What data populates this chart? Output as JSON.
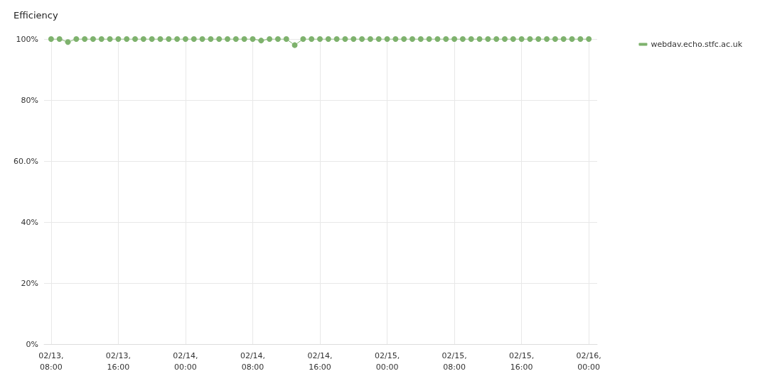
{
  "chart_data": {
    "type": "line",
    "title": "Efficiency",
    "x": [
      "--02-13T08:00",
      "--02-13T09:00",
      "--02-13T10:00",
      "--02-13T11:00",
      "--02-13T12:00",
      "--02-13T13:00",
      "--02-13T14:00",
      "--02-13T15:00",
      "--02-13T16:00",
      "--02-13T17:00",
      "--02-13T18:00",
      "--02-13T19:00",
      "--02-13T20:00",
      "--02-13T21:00",
      "--02-13T22:00",
      "--02-13T23:00",
      "--02-14T00:00",
      "--02-14T01:00",
      "--02-14T02:00",
      "--02-14T03:00",
      "--02-14T04:00",
      "--02-14T05:00",
      "--02-14T06:00",
      "--02-14T07:00",
      "--02-14T08:00",
      "--02-14T09:00",
      "--02-14T10:00",
      "--02-14T11:00",
      "--02-14T12:00",
      "--02-14T13:00",
      "--02-14T14:00",
      "--02-14T15:00",
      "--02-14T16:00",
      "--02-14T17:00",
      "--02-14T18:00",
      "--02-14T19:00",
      "--02-14T20:00",
      "--02-14T21:00",
      "--02-14T22:00",
      "--02-14T23:00",
      "--02-15T00:00",
      "--02-15T01:00",
      "--02-15T02:00",
      "--02-15T03:00",
      "--02-15T04:00",
      "--02-15T05:00",
      "--02-15T06:00",
      "--02-15T07:00",
      "--02-15T08:00",
      "--02-15T09:00",
      "--02-15T10:00",
      "--02-15T11:00",
      "--02-15T12:00",
      "--02-15T13:00",
      "--02-15T14:00",
      "--02-15T15:00",
      "--02-15T16:00",
      "--02-15T17:00",
      "--02-15T18:00",
      "--02-15T19:00",
      "--02-15T20:00",
      "--02-15T21:00",
      "--02-15T22:00",
      "--02-15T23:00",
      "--02-16T00:00"
    ],
    "series": [
      {
        "name": "webdav.echo.stfc.ac.uk",
        "color": "#7eb26d",
        "values": [
          100,
          100,
          99,
          100,
          100,
          100,
          100,
          100,
          100,
          100,
          100,
          100,
          100,
          100,
          100,
          100,
          100,
          100,
          100,
          100,
          100,
          100,
          100,
          100,
          100,
          99.5,
          100,
          100,
          100,
          98,
          100,
          100,
          100,
          100,
          100,
          100,
          100,
          100,
          100,
          100,
          100,
          100,
          100,
          100,
          100,
          100,
          100,
          100,
          100,
          100,
          100,
          100,
          100,
          100,
          100,
          100,
          100,
          100,
          100,
          100,
          100,
          100,
          100,
          100,
          100
        ]
      }
    ],
    "xlim": [
      "--02-13T07:10",
      "--02-16T01:00"
    ],
    "xticks": [
      {
        "value": "--02-13T08:00",
        "label": "02/13, 08:00"
      },
      {
        "value": "--02-13T16:00",
        "label": "02/13, 16:00"
      },
      {
        "value": "--02-14T00:00",
        "label": "02/14, 00:00"
      },
      {
        "value": "--02-14T08:00",
        "label": "02/14, 08:00"
      },
      {
        "value": "--02-14T16:00",
        "label": "02/14, 16:00"
      },
      {
        "value": "--02-15T00:00",
        "label": "02/15, 00:00"
      },
      {
        "value": "--02-15T08:00",
        "label": "02/15, 08:00"
      },
      {
        "value": "--02-15T16:00",
        "label": "02/15, 16:00"
      },
      {
        "value": "--02-16T00:00",
        "label": "02/16, 00:00"
      }
    ],
    "ylim": [
      0,
      100
    ],
    "yticks": [
      {
        "value": 0,
        "label": "0%"
      },
      {
        "value": 20,
        "label": "20%"
      },
      {
        "value": 40,
        "label": "40%"
      },
      {
        "value": 60,
        "label": "60.0%"
      },
      {
        "value": 80,
        "label": "80%"
      },
      {
        "value": 100,
        "label": "100%"
      }
    ],
    "grid": true,
    "legend": "right",
    "marker": "circle",
    "line_style": "solid"
  }
}
